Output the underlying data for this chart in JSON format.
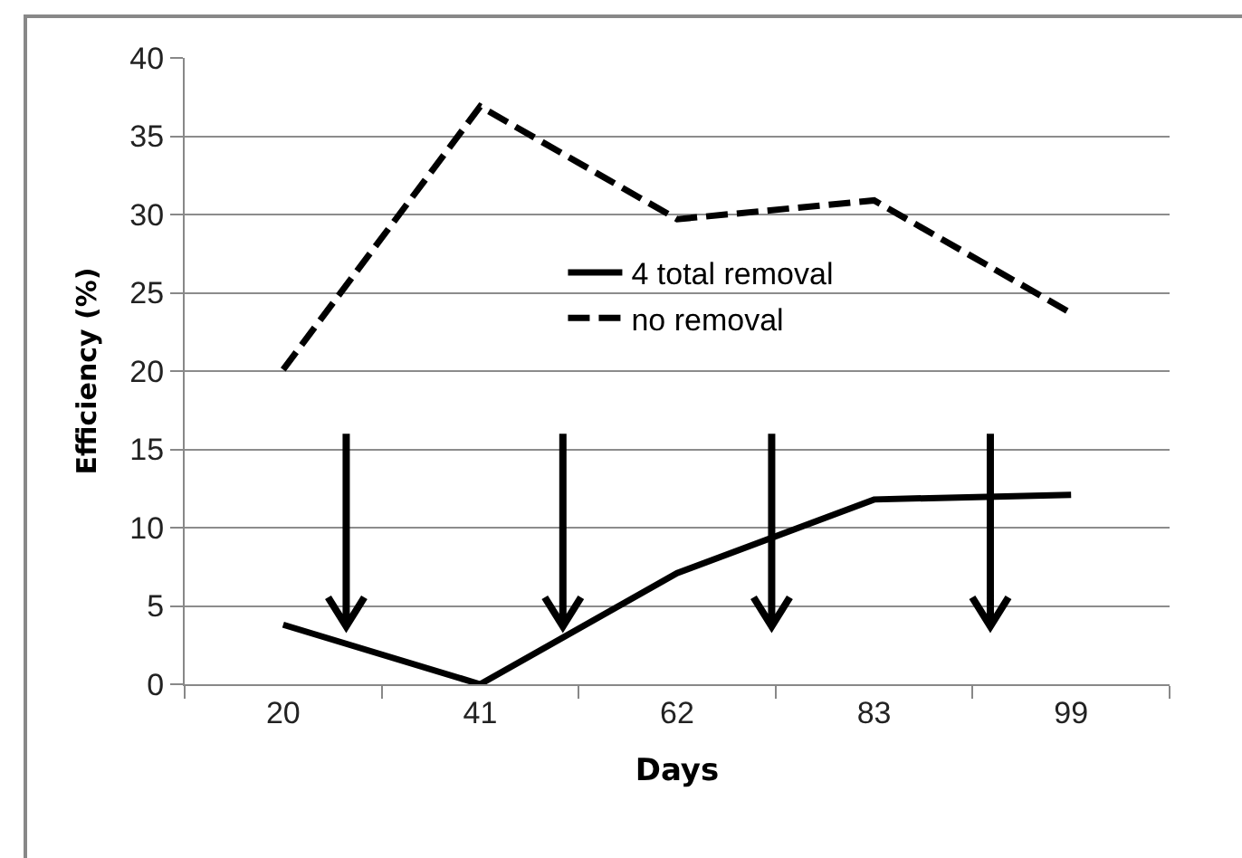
{
  "chart_data": {
    "type": "line",
    "xlabel": "Days",
    "ylabel": "Efficiency (%)",
    "categories": [
      "20",
      "41",
      "62",
      "83",
      "99"
    ],
    "series": [
      {
        "name": "4 total removal",
        "color": "#000000",
        "line_style": "solid",
        "values": [
          3.8,
          0,
          7.1,
          11.8,
          12.1
        ]
      },
      {
        "name": "no removal",
        "color": "#000000",
        "line_style": "dashed",
        "values": [
          20.1,
          36.9,
          29.7,
          30.9,
          23.7
        ]
      }
    ],
    "ylim": [
      0,
      40
    ],
    "yticks": [
      0,
      5,
      10,
      15,
      20,
      25,
      30,
      35,
      40
    ],
    "grid": "y",
    "legend": "center",
    "marker": "none"
  }
}
